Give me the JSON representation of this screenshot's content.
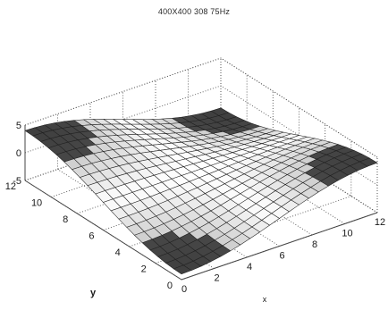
{
  "chart_data": {
    "type": "surface",
    "title": "400X400 308 75Hz",
    "xlabel": "x",
    "ylabel": "y",
    "zlabel": "",
    "xlim": [
      0,
      12
    ],
    "ylim": [
      0,
      12
    ],
    "zlim": [
      -5,
      5
    ],
    "x_ticks": [
      "0",
      "2",
      "4",
      "6",
      "8",
      "10",
      "12"
    ],
    "y_ticks": [
      "0",
      "2",
      "4",
      "6",
      "8",
      "10",
      "12"
    ],
    "z_ticks": [
      "-5",
      "0",
      "5"
    ],
    "grid": true,
    "colormap": "gray",
    "mesh_resolution": 21,
    "surface": {
      "description_values": "z ≈ -4·cos(π·x/12)·cos(π·y/12) (saddle-like wave, range −5..5)",
      "x": [
        0,
        0.6,
        1.2,
        1.8,
        2.4,
        3,
        3.6,
        4.2,
        4.8,
        5.4,
        6,
        6.6,
        7.2,
        7.8,
        8.4,
        9,
        9.6,
        10.2,
        10.8,
        11.4,
        12
      ],
      "y": [
        0,
        0.6,
        1.2,
        1.8,
        2.4,
        3,
        3.6,
        4.2,
        4.8,
        5.4,
        6,
        6.6,
        7.2,
        7.8,
        8.4,
        9,
        9.6,
        10.2,
        10.8,
        11.4,
        12
      ],
      "z_model": {
        "amplitude": -4,
        "kx": 1,
        "ky": 1,
        "period": 12
      }
    }
  }
}
